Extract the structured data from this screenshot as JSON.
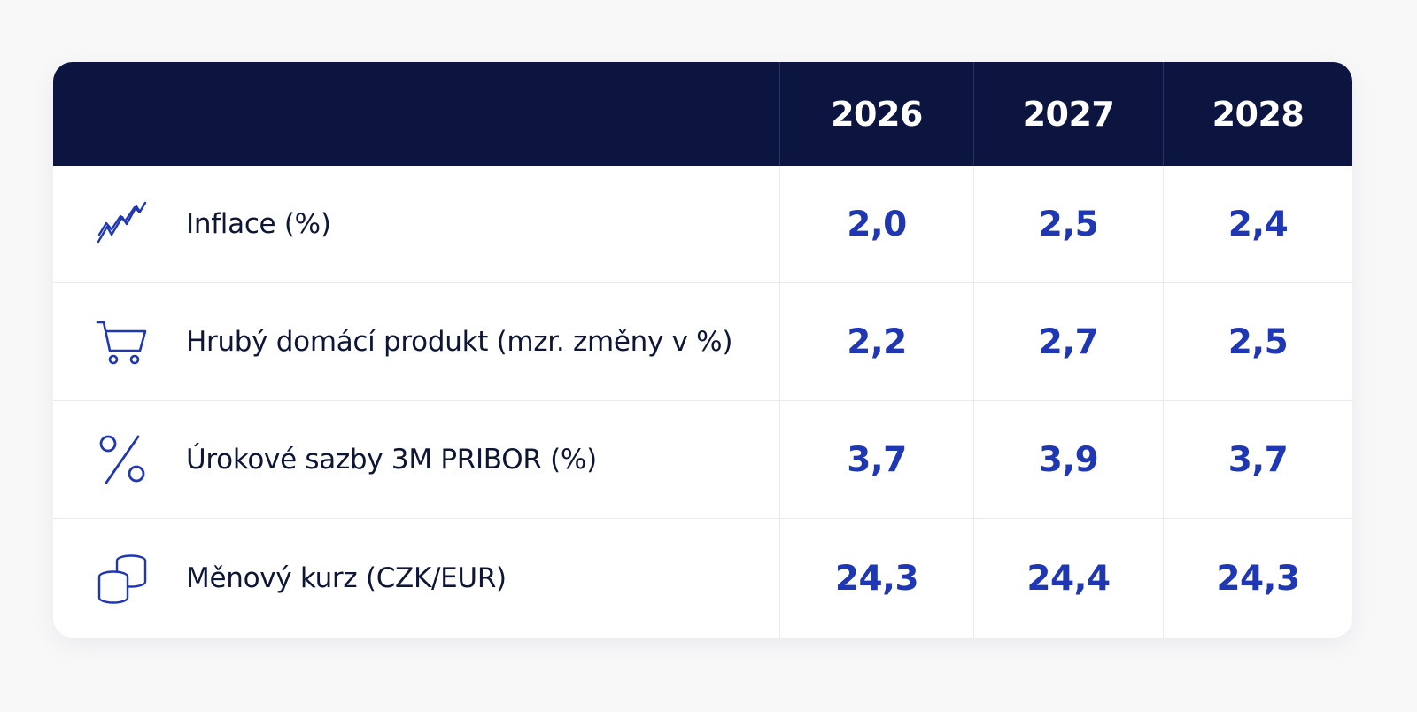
{
  "table": {
    "header": {
      "corner": "",
      "years": [
        "2026",
        "2027",
        "2028"
      ]
    },
    "rows": [
      {
        "icon": "trend-line-icon",
        "label": "Inflace (%)",
        "values": [
          "2,0",
          "2,5",
          "2,4"
        ]
      },
      {
        "icon": "shopping-cart-icon",
        "label": "Hrubý domácí produkt (mzr. změny v %)",
        "values": [
          "2,2",
          "2,7",
          "2,5"
        ]
      },
      {
        "icon": "percent-icon",
        "label": "Úrokové sazby 3M PRIBOR (%)",
        "values": [
          "3,7",
          "3,9",
          "3,7"
        ]
      },
      {
        "icon": "coins-stack-icon",
        "label": "Měnový kurz (CZK/EUR)",
        "values": [
          "24,3",
          "24,4",
          "24,3"
        ]
      }
    ]
  },
  "colors": {
    "header_bg": "#0b1540",
    "header_text": "#ffffff",
    "value_text": "#1f37b3",
    "icon_stroke": "#1f37b3",
    "label_text": "#0e1636"
  }
}
